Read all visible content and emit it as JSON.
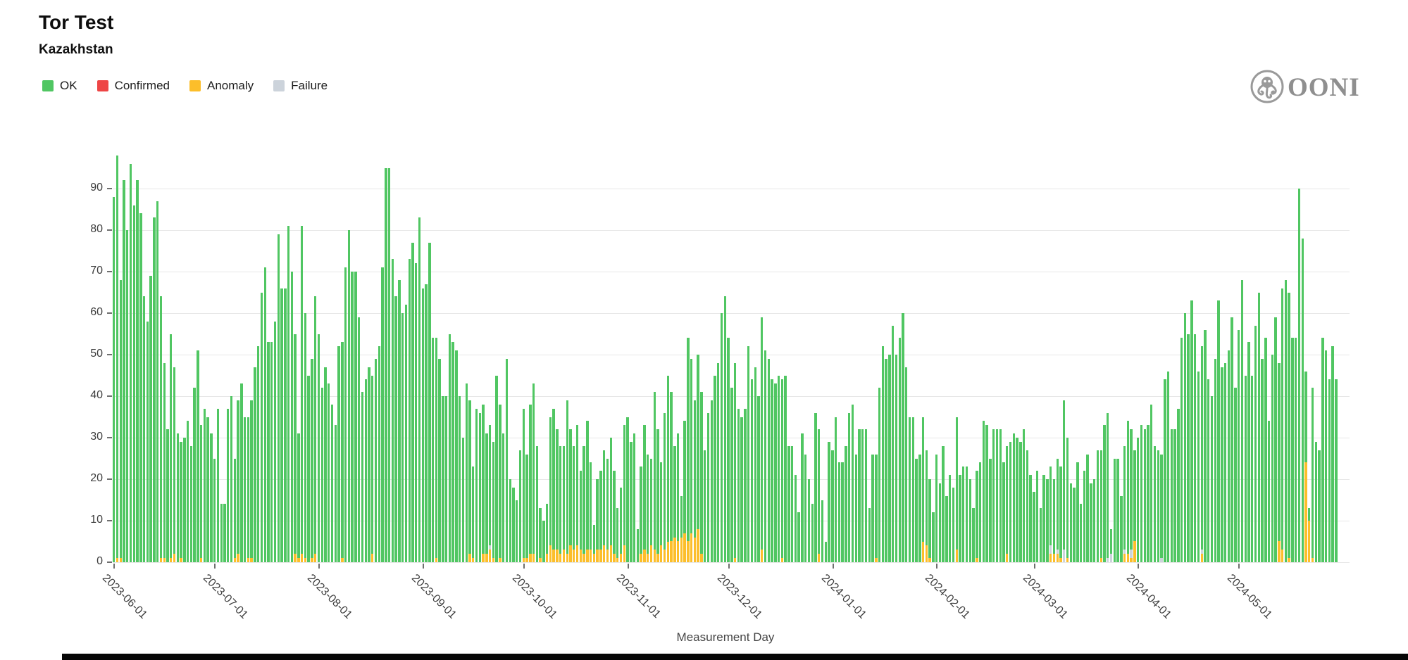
{
  "header": {
    "title": "Tor Test",
    "subtitle": "Kazakhstan"
  },
  "logo": {
    "text": "OONI",
    "icon": "octopus-in-circle",
    "color": "#8f8f8f"
  },
  "legend": {
    "items": [
      {
        "label": "OK",
        "color": "#50c662"
      },
      {
        "label": "Confirmed",
        "color": "#ee4545"
      },
      {
        "label": "Anomaly",
        "color": "#fcbe2a"
      },
      {
        "label": "Failure",
        "color": "#ccd3db"
      }
    ]
  },
  "chart_data": {
    "type": "bar",
    "stacked": true,
    "title": "Tor Test",
    "subtitle": "Kazakhstan",
    "xlabel": "Measurement Day",
    "ylabel": "",
    "ylim": [
      0,
      100
    ],
    "grid": true,
    "legend_position": "top-left",
    "start_date": "2023-06-01",
    "end_date": "2024-05-30",
    "num_days": 365,
    "y_ticks": [
      0,
      10,
      20,
      30,
      40,
      50,
      60,
      70,
      80,
      90
    ],
    "x_ticks": [
      {
        "label": "2023-06-01",
        "day_index": 0
      },
      {
        "label": "2023-07-01",
        "day_index": 30
      },
      {
        "label": "2023-08-01",
        "day_index": 61
      },
      {
        "label": "2023-09-01",
        "day_index": 92
      },
      {
        "label": "2023-10-01",
        "day_index": 122
      },
      {
        "label": "2023-11-01",
        "day_index": 153
      },
      {
        "label": "2023-12-01",
        "day_index": 183
      },
      {
        "label": "2024-01-01",
        "day_index": 214
      },
      {
        "label": "2024-02-01",
        "day_index": 245
      },
      {
        "label": "2024-03-01",
        "day_index": 274
      },
      {
        "label": "2024-04-01",
        "day_index": 305
      },
      {
        "label": "2024-05-01",
        "day_index": 335
      }
    ],
    "series_order_bottom_to_top": [
      "anomaly",
      "failure",
      "ok"
    ],
    "series_colors": {
      "ok": "#50c662",
      "confirmed": "#ee4545",
      "anomaly": "#fcbe2a",
      "failure": "#ccd3db"
    },
    "ok_values": [
      88,
      97,
      67,
      92,
      80,
      96,
      86,
      92,
      84,
      64,
      58,
      69,
      83,
      87,
      63,
      47,
      32,
      54,
      45,
      31,
      28,
      30,
      34,
      28,
      42,
      51,
      32,
      37,
      35,
      31,
      25,
      37,
      14,
      14,
      37,
      40,
      24,
      37,
      43,
      35,
      34,
      38,
      47,
      52,
      65,
      71,
      53,
      53,
      58,
      79,
      66,
      66,
      81,
      70,
      53,
      30,
      79,
      59,
      45,
      48,
      62,
      55,
      42,
      47,
      43,
      38,
      33,
      52,
      52,
      71,
      80,
      70,
      70,
      59,
      41,
      44,
      47,
      43,
      49,
      52,
      71,
      95,
      95,
      73,
      64,
      68,
      60,
      62,
      73,
      77,
      72,
      83,
      66,
      67,
      77,
      54,
      53,
      49,
      40,
      40,
      55,
      53,
      51,
      40,
      30,
      43,
      37,
      22,
      37,
      36,
      36,
      29,
      29,
      28,
      45,
      37,
      31,
      49,
      20,
      18,
      15,
      27,
      36,
      25,
      36,
      41,
      28,
      12,
      10,
      12,
      31,
      34,
      29,
      26,
      25,
      37,
      28,
      25,
      29,
      19,
      26,
      31,
      21,
      7,
      17,
      19,
      23,
      22,
      26,
      20,
      12,
      16,
      29,
      35,
      29,
      31,
      8,
      21,
      30,
      24,
      21,
      38,
      30,
      20,
      33,
      40,
      36,
      22,
      26,
      10,
      27,
      49,
      42,
      33,
      42,
      39,
      27,
      36,
      39,
      45,
      48,
      60,
      64,
      54,
      42,
      47,
      37,
      35,
      37,
      52,
      44,
      47,
      40,
      56,
      51,
      49,
      44,
      43,
      45,
      43,
      45,
      28,
      28,
      21,
      12,
      31,
      26,
      20,
      14,
      36,
      30,
      15,
      5,
      29,
      27,
      35,
      24,
      24,
      28,
      36,
      38,
      26,
      32,
      32,
      32,
      13,
      26,
      25,
      42,
      52,
      49,
      50,
      57,
      50,
      54,
      60,
      47,
      35,
      35,
      25,
      26,
      30,
      23,
      19,
      12,
      26,
      19,
      28,
      16,
      21,
      18,
      32,
      21,
      23,
      23,
      20,
      13,
      21,
      24,
      34,
      33,
      25,
      32,
      32,
      32,
      24,
      26,
      29,
      31,
      30,
      29,
      32,
      27,
      21,
      17,
      22,
      13,
      21,
      20,
      19,
      18,
      22,
      22,
      36,
      29,
      19,
      18,
      24,
      14,
      22,
      26,
      19,
      20,
      27,
      26,
      33,
      35,
      6,
      25,
      25,
      16,
      25,
      32,
      29,
      22,
      30,
      33,
      32,
      33,
      38,
      28,
      27,
      25,
      44,
      46,
      32,
      32,
      37,
      54,
      60,
      55,
      63,
      55,
      46,
      49,
      56,
      44,
      40,
      49,
      63,
      47,
      48,
      51,
      59,
      42,
      56,
      68,
      45,
      53,
      45,
      57,
      65,
      49,
      54,
      34,
      50,
      59,
      43,
      63,
      68,
      64,
      54,
      54,
      90,
      78,
      22,
      3,
      41,
      29,
      27,
      54,
      51,
      44,
      52,
      44
    ],
    "anomaly_by_day": {
      "1": 1,
      "2": 1,
      "14": 1,
      "15": 1,
      "17": 1,
      "18": 2,
      "20": 1,
      "26": 1,
      "36": 1,
      "37": 2,
      "40": 1,
      "41": 1,
      "54": 2,
      "55": 1,
      "56": 2,
      "57": 1,
      "59": 1,
      "60": 2,
      "68": 1,
      "77": 2,
      "96": 1,
      "106": 2,
      "107": 1,
      "110": 2,
      "111": 2,
      "112": 3,
      "113": 1,
      "115": 1,
      "122": 1,
      "123": 1,
      "124": 2,
      "125": 2,
      "127": 1,
      "129": 2,
      "130": 4,
      "131": 3,
      "132": 3,
      "133": 2,
      "134": 3,
      "135": 2,
      "136": 4,
      "137": 3,
      "138": 4,
      "139": 3,
      "140": 2,
      "141": 3,
      "142": 3,
      "143": 2,
      "144": 3,
      "145": 3,
      "146": 4,
      "147": 3,
      "148": 4,
      "149": 2,
      "150": 1,
      "151": 2,
      "152": 4,
      "157": 2,
      "158": 3,
      "159": 2,
      "160": 4,
      "161": 3,
      "162": 2,
      "163": 4,
      "164": 3,
      "165": 5,
      "166": 5,
      "167": 6,
      "168": 5,
      "169": 6,
      "170": 7,
      "171": 5,
      "172": 7,
      "173": 6,
      "174": 8,
      "175": 2,
      "185": 1,
      "193": 3,
      "199": 1,
      "210": 2,
      "227": 1,
      "241": 5,
      "242": 4,
      "243": 1,
      "251": 3,
      "257": 1,
      "266": 2,
      "279": 2,
      "280": 2,
      "281": 2,
      "282": 1,
      "284": 1,
      "294": 1,
      "301": 2,
      "302": 2,
      "303": 1,
      "304": 5,
      "324": 2,
      "347": 5,
      "348": 3,
      "350": 1,
      "355": 24,
      "356": 10,
      "357": 1
    },
    "failure_by_day": {
      "112": 1,
      "279": 2,
      "281": 1,
      "283": 3,
      "296": 1,
      "297": 2,
      "301": 1,
      "303": 2,
      "312": 1,
      "324": 1
    },
    "confirmed_by_day": {}
  }
}
